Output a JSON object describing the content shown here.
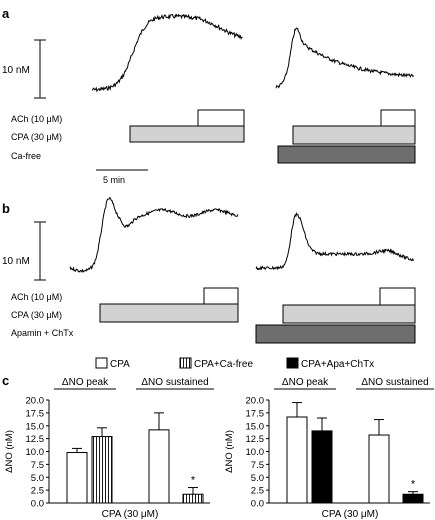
{
  "panel_labels": [
    "a",
    "b",
    "c"
  ],
  "panel_a": {
    "scale_label": "10 nM",
    "time_label": "5 min",
    "rows": [
      "ACh (10 μM)",
      "CPA (30 μM)",
      "Ca-free"
    ]
  },
  "panel_b": {
    "scale_label": "10 nM",
    "rows": [
      "ACh (10 μM)",
      "CPA (30 μM)",
      "Apamin + ChTx"
    ]
  },
  "panel_c": {
    "legend": [
      "CPA",
      "CPA+Ca-free",
      "CPA+Apa+ChTx"
    ],
    "ylabel": "ΔNO (nM)",
    "xlabel": "CPA (30 μM)",
    "group_labels": [
      "ΔNO peak",
      "ΔNO sustained"
    ],
    "significance": "*"
  },
  "chart_data": [
    {
      "type": "bar",
      "title": "",
      "xlabel": "CPA (30 μM)",
      "ylabel": "ΔNO (nM)",
      "ylim": [
        0,
        20
      ],
      "yticks": [
        "0.0",
        "2.5",
        "5.0",
        "7.5",
        "10.0",
        "12.5",
        "15.0",
        "17.5",
        "20.0"
      ],
      "categories": [
        "ΔNO peak",
        "ΔNO sustained"
      ],
      "series": [
        {
          "name": "CPA",
          "values": [
            9.8,
            14.2
          ],
          "errors": [
            0.8,
            3.3
          ],
          "fill": "open"
        },
        {
          "name": "CPA+Ca-free",
          "values": [
            12.9,
            1.7
          ],
          "errors": [
            1.7,
            1.3
          ],
          "fill": "striped"
        }
      ]
    },
    {
      "type": "bar",
      "title": "",
      "xlabel": "CPA (30 μM)",
      "ylabel": "ΔNO (nM)",
      "ylim": [
        0,
        20
      ],
      "yticks": [
        "0.0",
        "2.5",
        "5.0",
        "7.5",
        "10.0",
        "12.5",
        "15.0",
        "17.5",
        "20.0"
      ],
      "categories": [
        "ΔNO peak",
        "ΔNO sustained"
      ],
      "series": [
        {
          "name": "CPA",
          "values": [
            16.7,
            13.2
          ],
          "errors": [
            2.8,
            3.0
          ],
          "fill": "open"
        },
        {
          "name": "CPA+Apa+ChTx",
          "values": [
            14.0,
            1.7
          ],
          "errors": [
            2.5,
            0.5
          ],
          "fill": "solid"
        }
      ]
    }
  ]
}
